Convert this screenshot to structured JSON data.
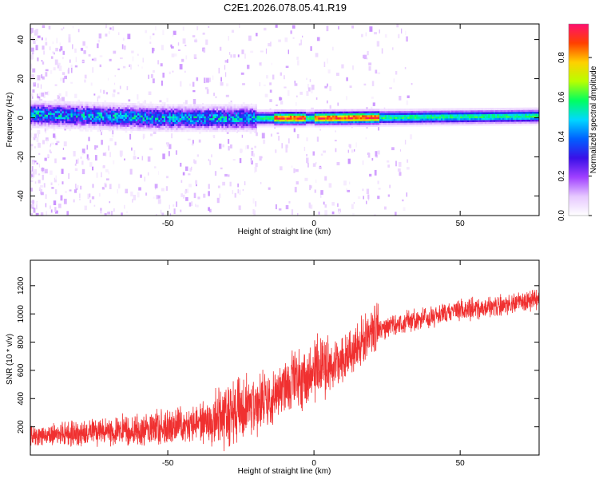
{
  "title": "C2E1.2026.078.05.41.R19",
  "chart_data": [
    {
      "type": "heatmap",
      "name": "spectrogram",
      "xlabel": "Height of straight line (km)",
      "ylabel": "Frequency (Hz)",
      "xlim": [
        -97,
        77
      ],
      "ylim": [
        -50,
        48
      ],
      "x_ticks": [
        -50,
        0,
        50
      ],
      "x_tick_labels": [
        "-50",
        "0",
        "50"
      ],
      "y_ticks": [
        -40,
        -20,
        0,
        20,
        40
      ],
      "y_tick_labels": [
        "-40",
        "-20",
        "0",
        "20",
        "40"
      ],
      "colorbar": {
        "label": "Normalized spectral amplitude",
        "range": [
          0,
          0.97
        ],
        "ticks": [
          0.0,
          0.2,
          0.4,
          0.6,
          0.8
        ],
        "tick_labels": [
          "0.0",
          "0.2",
          "0.4",
          "0.6",
          "0.8"
        ],
        "colors": [
          "#ffffff",
          "#e6c8ff",
          "#a040ff",
          "#3a10e8",
          "#0060ff",
          "#00d8ff",
          "#00ff60",
          "#b8ff00",
          "#ffd000",
          "#ff4000",
          "#ff1070"
        ]
      },
      "band": {
        "description": "narrow high-amplitude band centred near 0-2 Hz",
        "center_hz": [
          {
            "x": -97,
            "y": 2
          },
          {
            "x": -50,
            "y": 0
          },
          {
            "x": 0,
            "y": 0
          },
          {
            "x": 77,
            "y": 1
          }
        ],
        "peak_segments": [
          {
            "x0": -14,
            "x1": -3,
            "y": 1
          },
          {
            "x0": 0,
            "x1": 22,
            "y": 0
          }
        ]
      }
    },
    {
      "type": "line",
      "name": "snr",
      "xlabel": "Height of straight line (km)",
      "ylabel": "SNR (10 * v/v)",
      "xlim": [
        -97,
        77
      ],
      "ylim": [
        0,
        1380
      ],
      "x_ticks": [
        -50,
        0,
        50
      ],
      "x_tick_labels": [
        "-50",
        "0",
        "50"
      ],
      "y_ticks": [
        200,
        400,
        600,
        800,
        1000,
        1200
      ],
      "y_tick_labels": [
        "200",
        "400",
        "600",
        "800",
        "1000",
        "1200"
      ],
      "series": [
        {
          "name": "SNR",
          "color": "#f03030",
          "trend": {
            "x": [
              -97,
              -80,
              -60,
              -45,
              -35,
              -28,
              -22,
              -15,
              -8,
              0,
              8,
              15,
              22,
              30,
              40,
              50,
              60,
              77
            ],
            "y": [
              120,
              150,
              170,
              200,
              220,
              260,
              320,
              400,
              480,
              580,
              650,
              760,
              880,
              930,
              970,
              1020,
              1040,
              1100
            ]
          }
        }
      ]
    }
  ]
}
